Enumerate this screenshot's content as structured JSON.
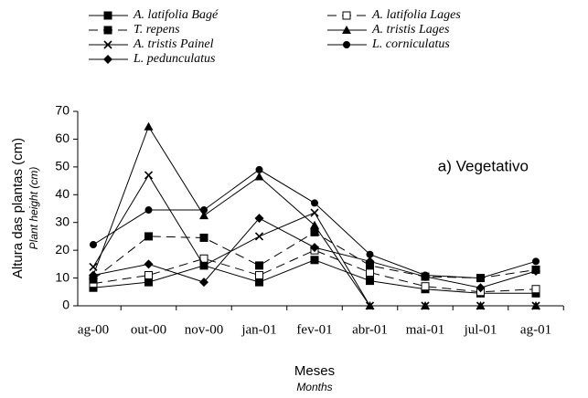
{
  "chart_data": {
    "type": "line",
    "annotation": "a)  Vegetativo",
    "y_label": "Altura das plantas (cm)",
    "y_label_sub": "Plant height (cm)",
    "x_label": "Meses",
    "x_label_sub": "Months",
    "categories": [
      "ag-00",
      "out-00",
      "nov-00",
      "jan-01",
      "fev-01",
      "abr-01",
      "mai-01",
      "jul-01",
      "ag-01"
    ],
    "ylim": [
      0,
      70
    ],
    "yticks": [
      0,
      10,
      20,
      30,
      40,
      50,
      60,
      70
    ],
    "series": [
      {
        "name": "A. latifolia Bagé",
        "color": "#000000",
        "marker": "square",
        "dashed": false,
        "values": [
          6.5,
          8.5,
          14.5,
          8.5,
          16.5,
          9,
          6,
          4.5,
          4.5
        ]
      },
      {
        "name": "A. latifolia Lages",
        "color": "#000000",
        "marker": "open-square",
        "dashed": true,
        "values": [
          8,
          11,
          17,
          11,
          20,
          12,
          7,
          5,
          6
        ]
      },
      {
        "name": "T. repens",
        "color": "#000000",
        "marker": "square",
        "dashed": true,
        "values": [
          9.5,
          25,
          24.5,
          14.5,
          26.5,
          14.5,
          10.5,
          10,
          13
        ]
      },
      {
        "name": "A. tristis Lages",
        "color": "#000000",
        "marker": "triangle",
        "dashed": false,
        "values": [
          11,
          64.5,
          32.5,
          46.5,
          29,
          0,
          0,
          0,
          0
        ]
      },
      {
        "name": "A. tristis Painel",
        "color": "#000000",
        "marker": "x",
        "dashed": false,
        "values": [
          14,
          47,
          14.5,
          25,
          33.5,
          0,
          0,
          0,
          0
        ]
      },
      {
        "name": "L. corniculatus",
        "color": "#000000",
        "marker": "circle",
        "dashed": false,
        "values": [
          22,
          34.5,
          34.5,
          49,
          37,
          18.5,
          11,
          10,
          16
        ]
      },
      {
        "name": "L. pedunculatus",
        "color": "#000000",
        "marker": "diamond",
        "dashed": false,
        "values": [
          11,
          15,
          8.5,
          31.5,
          21,
          16,
          10.5,
          6.5,
          12.5
        ]
      }
    ]
  }
}
